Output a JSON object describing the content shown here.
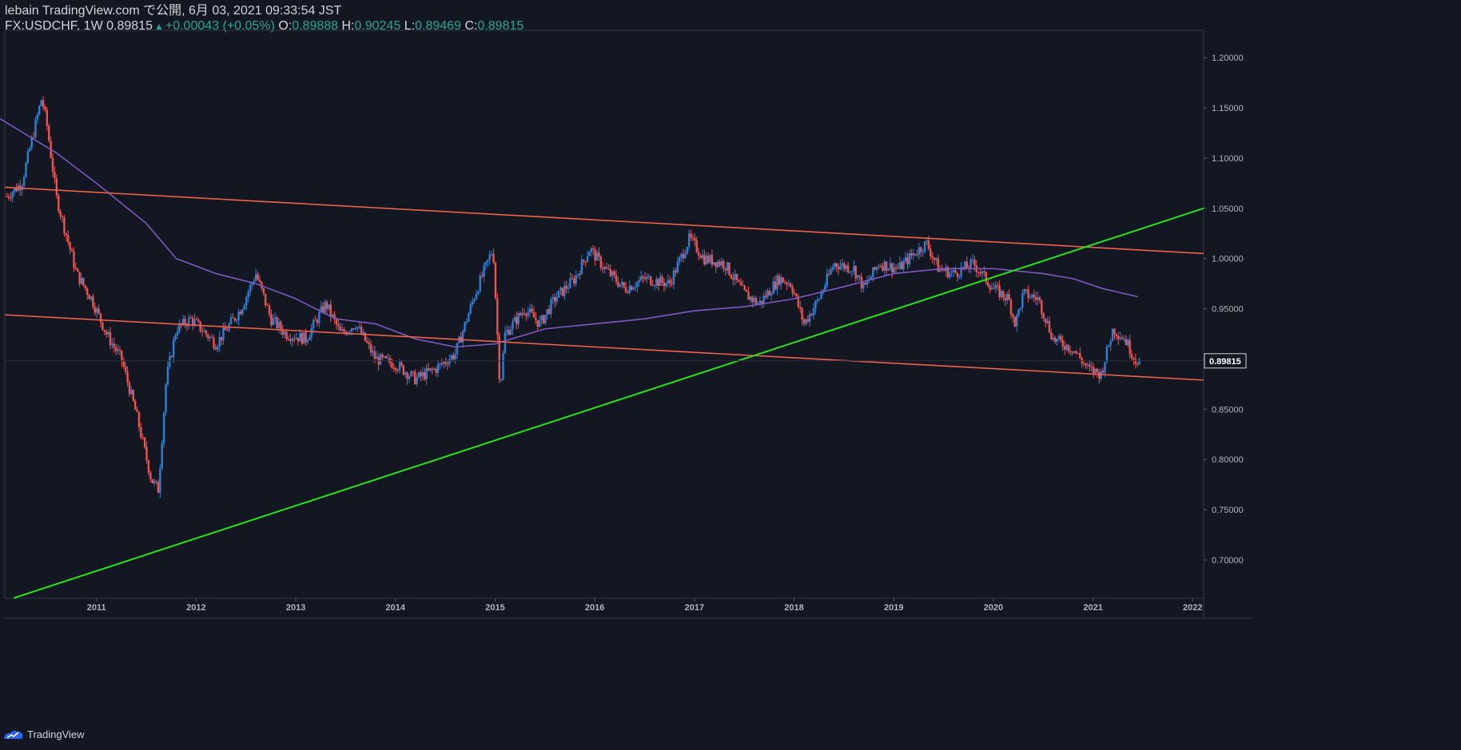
{
  "header": {
    "publisher": "lebain TradingView.com で公開, 6月 03, 2021 09:33:54 JST",
    "symbol_interval": "FX:USDCHF, 1W",
    "last": "0.89815",
    "change": "+0.00043 (+0.05%)",
    "o_label": "O:",
    "o_value": "0.89888",
    "h_label": "H:",
    "h_value": "0.90245",
    "l_label": "L:",
    "l_value": "0.89469",
    "c_label": "C:",
    "c_value": "0.89815"
  },
  "footer": {
    "brand": "TradingView"
  },
  "colors": {
    "background": "#131722",
    "up": "#2f7fd6",
    "down": "#ef5350",
    "ma": "#7e57c2",
    "channel": "#f0604a",
    "support": "#27e21d",
    "price_label_bg": "#131722"
  },
  "chart_data": {
    "type": "candlestick",
    "symbol": "FX:USDCHF",
    "interval": "1W",
    "x_axis": {
      "type": "time",
      "range": [
        2010.08,
        2022.11
      ],
      "ticks": [
        "2011",
        "2012",
        "2013",
        "2014",
        "2015",
        "2016",
        "2017",
        "2018",
        "2019",
        "2020",
        "2021",
        "2022"
      ]
    },
    "y_axis": {
      "range": [
        0.6618,
        1.2272
      ],
      "side": "right",
      "ticks": [
        "1.20000",
        "1.15000",
        "1.10000",
        "1.05000",
        "1.00000",
        "0.95000",
        "0.90000",
        "0.85000",
        "0.80000",
        "0.75000",
        "0.70000"
      ]
    },
    "last_price": {
      "value": 0.89815,
      "label": "0.89815"
    },
    "close_path": [
      [
        2010.1,
        1.062
      ],
      [
        2010.25,
        1.075
      ],
      [
        2010.45,
        1.16
      ],
      [
        2010.5,
        1.135
      ],
      [
        2010.6,
        1.06
      ],
      [
        2010.8,
        0.985
      ],
      [
        2010.95,
        0.96
      ],
      [
        2011.1,
        0.925
      ],
      [
        2011.25,
        0.9
      ],
      [
        2011.4,
        0.845
      ],
      [
        2011.55,
        0.78
      ],
      [
        2011.62,
        0.77
      ],
      [
        2011.7,
        0.88
      ],
      [
        2011.8,
        0.93
      ],
      [
        2011.95,
        0.94
      ],
      [
        2012.2,
        0.915
      ],
      [
        2012.45,
        0.95
      ],
      [
        2012.6,
        0.985
      ],
      [
        2012.75,
        0.94
      ],
      [
        2012.9,
        0.925
      ],
      [
        2013.1,
        0.92
      ],
      [
        2013.3,
        0.955
      ],
      [
        2013.45,
        0.925
      ],
      [
        2013.6,
        0.935
      ],
      [
        2013.8,
        0.9
      ],
      [
        2014.0,
        0.895
      ],
      [
        2014.2,
        0.88
      ],
      [
        2014.4,
        0.89
      ],
      [
        2014.6,
        0.905
      ],
      [
        2014.8,
        0.965
      ],
      [
        2014.98,
        1.01
      ],
      [
        2015.05,
        0.87
      ],
      [
        2015.1,
        0.925
      ],
      [
        2015.3,
        0.95
      ],
      [
        2015.45,
        0.935
      ],
      [
        2015.6,
        0.96
      ],
      [
        2015.8,
        0.98
      ],
      [
        2015.95,
        1.01
      ],
      [
        2016.1,
        0.99
      ],
      [
        2016.3,
        0.97
      ],
      [
        2016.5,
        0.98
      ],
      [
        2016.75,
        0.975
      ],
      [
        2016.95,
        1.02
      ],
      [
        2017.1,
        1.0
      ],
      [
        2017.3,
        0.995
      ],
      [
        2017.5,
        0.965
      ],
      [
        2017.65,
        0.955
      ],
      [
        2017.85,
        0.98
      ],
      [
        2017.97,
        0.975
      ],
      [
        2018.1,
        0.935
      ],
      [
        2018.25,
        0.96
      ],
      [
        2018.4,
        0.995
      ],
      [
        2018.6,
        0.99
      ],
      [
        2018.7,
        0.97
      ],
      [
        2018.85,
        0.995
      ],
      [
        2019.05,
        0.99
      ],
      [
        2019.2,
        1.005
      ],
      [
        2019.33,
        1.015
      ],
      [
        2019.45,
        0.99
      ],
      [
        2019.6,
        0.985
      ],
      [
        2019.8,
        0.995
      ],
      [
        2020.0,
        0.97
      ],
      [
        2020.15,
        0.96
      ],
      [
        2020.22,
        0.935
      ],
      [
        2020.3,
        0.965
      ],
      [
        2020.45,
        0.96
      ],
      [
        2020.6,
        0.92
      ],
      [
        2020.8,
        0.91
      ],
      [
        2020.95,
        0.89
      ],
      [
        2021.08,
        0.885
      ],
      [
        2021.2,
        0.93
      ],
      [
        2021.32,
        0.92
      ],
      [
        2021.42,
        0.9
      ],
      [
        2021.47,
        0.898
      ]
    ],
    "sma_path": [
      [
        2010.02,
        1.14
      ],
      [
        2010.6,
        1.105
      ],
      [
        2011.0,
        1.075
      ],
      [
        2011.5,
        1.035
      ],
      [
        2011.8,
        1.0
      ],
      [
        2012.2,
        0.985
      ],
      [
        2012.6,
        0.975
      ],
      [
        2013.0,
        0.96
      ],
      [
        2013.4,
        0.94
      ],
      [
        2013.8,
        0.935
      ],
      [
        2014.2,
        0.92
      ],
      [
        2014.6,
        0.912
      ],
      [
        2015.0,
        0.915
      ],
      [
        2015.5,
        0.93
      ],
      [
        2016.0,
        0.935
      ],
      [
        2016.5,
        0.94
      ],
      [
        2017.0,
        0.948
      ],
      [
        2017.5,
        0.952
      ],
      [
        2018.0,
        0.96
      ],
      [
        2018.5,
        0.972
      ],
      [
        2019.0,
        0.985
      ],
      [
        2019.5,
        0.99
      ],
      [
        2020.0,
        0.99
      ],
      [
        2020.5,
        0.985
      ],
      [
        2020.8,
        0.98
      ],
      [
        2021.1,
        0.97
      ],
      [
        2021.45,
        0.962
      ]
    ],
    "lines": [
      {
        "name": "upper-channel",
        "color": "#f0604a",
        "from": [
          2010.08,
          1.071
        ],
        "to": [
          2022.11,
          1.005
        ]
      },
      {
        "name": "lower-channel",
        "color": "#f0604a",
        "from": [
          2010.08,
          0.944
        ],
        "to": [
          2022.11,
          0.879
        ]
      },
      {
        "name": "support-trendline",
        "color": "#27e21d",
        "from": [
          2010.17,
          0.662
        ],
        "to": [
          2022.11,
          1.05
        ]
      }
    ]
  }
}
